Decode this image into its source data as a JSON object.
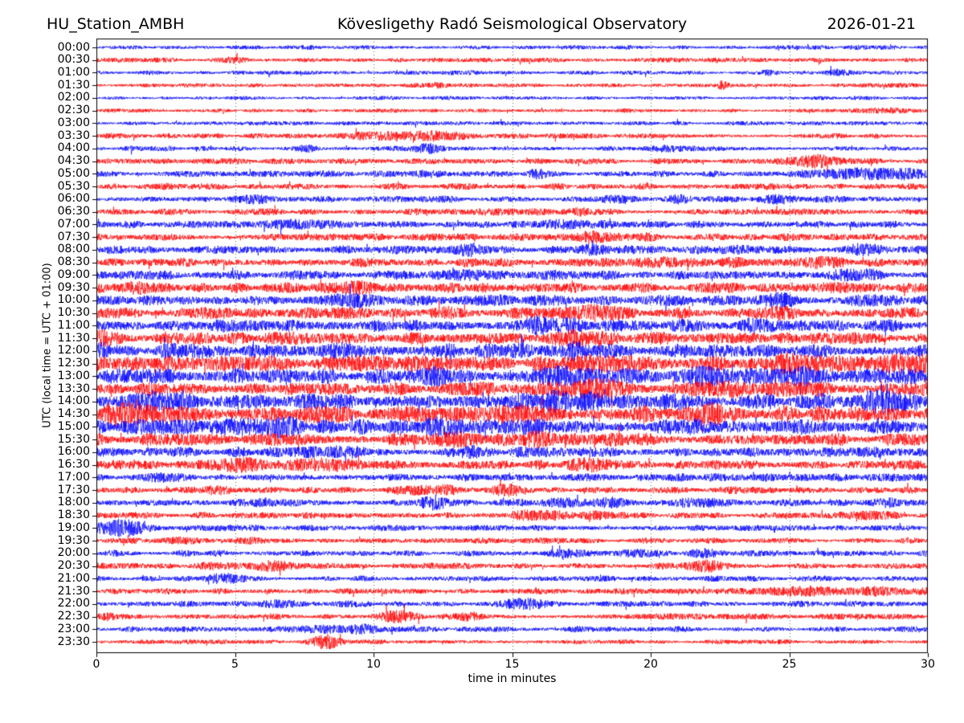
{
  "header": {
    "station": "HU_Station_AMBH",
    "observatory": "Kövesligethy Radó Seismological Observatory",
    "date": "2026-01-21"
  },
  "chart_data": {
    "type": "line",
    "variant": "helicorder-day-plot",
    "title": "Kövesligethy Radó Seismological Observatory",
    "subtitle_left": "HU_Station_AMBH",
    "subtitle_right": "2026-01-21",
    "xlabel": "time in minutes",
    "ylabel": "UTC (local time = UTC + 01:00)",
    "xlim": [
      0,
      30
    ],
    "x_ticks": [
      0,
      5,
      10,
      15,
      20,
      25,
      30
    ],
    "grid": "dotted vertical gridlines at 5-minute intervals",
    "legend": "none",
    "colors": {
      "even_rows": "#0000ff",
      "odd_rows": "#ff0000",
      "grid": "#666666",
      "frame": "#000000"
    },
    "noise_seed": 987654,
    "rows": [
      {
        "label": "00:00",
        "color": "blue",
        "base_amp": 2.2,
        "events": []
      },
      {
        "label": "00:30",
        "color": "red",
        "base_amp": 2.2,
        "events": [
          {
            "t": 5.0,
            "w": 0.3,
            "a": 2
          }
        ]
      },
      {
        "label": "01:00",
        "color": "blue",
        "base_amp": 2.0,
        "events": [
          {
            "t": 13.5,
            "w": 0.3,
            "a": 2
          },
          {
            "t": 24.3,
            "w": 0.2,
            "a": 2
          },
          {
            "t": 26.8,
            "w": 0.4,
            "a": 3
          }
        ]
      },
      {
        "label": "01:30",
        "color": "red",
        "base_amp": 2.0,
        "events": [
          {
            "t": 12.5,
            "w": 0.3,
            "a": 2
          },
          {
            "t": 22.6,
            "w": 0.12,
            "a": 5
          },
          {
            "t": 29.0,
            "w": 0.5,
            "a": 1.5
          }
        ]
      },
      {
        "label": "02:00",
        "color": "blue",
        "base_amp": 1.8,
        "events": []
      },
      {
        "label": "02:30",
        "color": "red",
        "base_amp": 2.0,
        "events": [
          {
            "t": 28.5,
            "w": 0.8,
            "a": 1.5
          }
        ]
      },
      {
        "label": "03:00",
        "color": "blue",
        "base_amp": 2.0,
        "events": []
      },
      {
        "label": "03:30",
        "color": "red",
        "base_amp": 2.5,
        "events": [
          {
            "t": 10.6,
            "w": 1.0,
            "a": 4
          },
          {
            "t": 12.6,
            "w": 0.8,
            "a": 4
          }
        ]
      },
      {
        "label": "04:00",
        "color": "blue",
        "base_amp": 2.5,
        "events": [
          {
            "t": 7.6,
            "w": 0.3,
            "a": 3
          },
          {
            "t": 11.9,
            "w": 0.4,
            "a": 4
          },
          {
            "t": 20.6,
            "w": 0.5,
            "a": 3
          }
        ]
      },
      {
        "label": "04:30",
        "color": "red",
        "base_amp": 2.8,
        "events": [
          {
            "t": 25.9,
            "w": 0.5,
            "a": 7
          }
        ]
      },
      {
        "label": "05:00",
        "color": "blue",
        "base_amp": 3.0,
        "events": [
          {
            "t": 12.0,
            "w": 0.4,
            "a": 3
          },
          {
            "t": 15.9,
            "w": 0.3,
            "a": 3
          },
          {
            "t": 26.5,
            "w": 0.8,
            "a": 4
          },
          {
            "t": 28.8,
            "w": 1.0,
            "a": 5
          }
        ]
      },
      {
        "label": "05:30",
        "color": "red",
        "base_amp": 3.2,
        "events": []
      },
      {
        "label": "06:00",
        "color": "blue",
        "base_amp": 3.2,
        "events": [
          {
            "t": 5.8,
            "w": 0.4,
            "a": 3
          },
          {
            "t": 19.0,
            "w": 0.5,
            "a": 3
          },
          {
            "t": 21.0,
            "w": 0.4,
            "a": 3
          },
          {
            "t": 24.6,
            "w": 0.4,
            "a": 3
          }
        ]
      },
      {
        "label": "06:30",
        "color": "red",
        "base_amp": 3.2,
        "events": [
          {
            "t": 14.5,
            "w": 0.8,
            "a": 3
          },
          {
            "t": 17.4,
            "w": 0.3,
            "a": 3
          }
        ]
      },
      {
        "label": "07:00",
        "color": "blue",
        "base_amp": 3.5,
        "events": [
          {
            "t": 7.3,
            "w": 0.8,
            "a": 4
          },
          {
            "t": 17.0,
            "w": 1.0,
            "a": 3
          }
        ]
      },
      {
        "label": "07:30",
        "color": "red",
        "base_amp": 3.5,
        "events": [
          {
            "t": 18.0,
            "w": 0.8,
            "a": 4
          },
          {
            "t": 19.9,
            "w": 0.3,
            "a": 3
          }
        ]
      },
      {
        "label": "08:00",
        "color": "blue",
        "base_amp": 4.0,
        "events": [
          {
            "t": 13.6,
            "w": 0.4,
            "a": 4
          },
          {
            "t": 17.9,
            "w": 0.4,
            "a": 4
          },
          {
            "t": 23.1,
            "w": 0.4,
            "a": 3
          },
          {
            "t": 27.9,
            "w": 0.5,
            "a": 4
          }
        ]
      },
      {
        "label": "08:30",
        "color": "red",
        "base_amp": 4.5,
        "events": [
          {
            "t": 20.6,
            "w": 0.5,
            "a": 4
          },
          {
            "t": 23.0,
            "w": 0.4,
            "a": 3
          },
          {
            "t": 25.9,
            "w": 0.5,
            "a": 4
          }
        ]
      },
      {
        "label": "09:00",
        "color": "blue",
        "base_amp": 4.5,
        "events": [
          {
            "t": 13.6,
            "w": 0.5,
            "a": 4
          },
          {
            "t": 16.1,
            "w": 0.4,
            "a": 3
          },
          {
            "t": 27.5,
            "w": 0.6,
            "a": 3
          }
        ]
      },
      {
        "label": "09:30",
        "color": "red",
        "base_amp": 5.0,
        "events": [
          {
            "t": 1.4,
            "w": 0.5,
            "a": 5
          },
          {
            "t": 9.5,
            "w": 0.5,
            "a": 3
          }
        ]
      },
      {
        "label": "10:00",
        "color": "blue",
        "base_amp": 5.5,
        "events": [
          {
            "t": 9.3,
            "w": 0.5,
            "a": 4
          },
          {
            "t": 24.4,
            "w": 0.5,
            "a": 5
          }
        ]
      },
      {
        "label": "10:30",
        "color": "red",
        "base_amp": 5.5,
        "events": [
          {
            "t": 12.6,
            "w": 0.5,
            "a": 4
          },
          {
            "t": 18.1,
            "w": 0.6,
            "a": 5
          },
          {
            "t": 24.6,
            "w": 0.5,
            "a": 4
          }
        ]
      },
      {
        "label": "11:00",
        "color": "blue",
        "base_amp": 6.0,
        "events": [
          {
            "t": 15.9,
            "w": 0.6,
            "a": 5
          },
          {
            "t": 16.9,
            "w": 0.4,
            "a": 4
          },
          {
            "t": 24.3,
            "w": 0.5,
            "a": 5
          }
        ]
      },
      {
        "label": "11:30",
        "color": "red",
        "base_amp": 6.5,
        "events": [
          {
            "t": 0.3,
            "w": 0.4,
            "a": 4
          },
          {
            "t": 17.5,
            "w": 0.8,
            "a": 4
          }
        ]
      },
      {
        "label": "12:00",
        "color": "blue",
        "base_amp": 7.0,
        "events": [
          {
            "t": 0.4,
            "w": 0.4,
            "a": 5
          },
          {
            "t": 8.6,
            "w": 0.5,
            "a": 5
          },
          {
            "t": 17.3,
            "w": 0.8,
            "a": 4
          }
        ]
      },
      {
        "label": "12:30",
        "color": "red",
        "base_amp": 7.5,
        "events": [
          {
            "t": 17.6,
            "w": 0.7,
            "a": 5
          },
          {
            "t": 24.9,
            "w": 0.6,
            "a": 5
          },
          {
            "t": 29.0,
            "w": 0.8,
            "a": 4
          }
        ]
      },
      {
        "label": "13:00",
        "color": "blue",
        "base_amp": 7.5,
        "events": [
          {
            "t": 12.5,
            "w": 0.6,
            "a": 4
          },
          {
            "t": 17.4,
            "w": 0.8,
            "a": 5
          },
          {
            "t": 22.1,
            "w": 0.6,
            "a": 5
          },
          {
            "t": 25.6,
            "w": 0.8,
            "a": 4
          }
        ]
      },
      {
        "label": "13:30",
        "color": "red",
        "base_amp": 7.0,
        "events": [
          {
            "t": 17.5,
            "w": 0.9,
            "a": 6
          },
          {
            "t": 22.4,
            "w": 0.8,
            "a": 5
          }
        ]
      },
      {
        "label": "14:00",
        "color": "blue",
        "base_amp": 8.0,
        "events": [
          {
            "t": 2.2,
            "w": 0.8,
            "a": 6
          },
          {
            "t": 16.3,
            "w": 0.9,
            "a": 5
          },
          {
            "t": 28.2,
            "w": 0.8,
            "a": 5
          }
        ]
      },
      {
        "label": "14:30",
        "color": "red",
        "base_amp": 8.0,
        "events": [
          {
            "t": 0.9,
            "w": 0.5,
            "a": 6
          },
          {
            "t": 2.1,
            "w": 0.6,
            "a": 6
          },
          {
            "t": 16.0,
            "w": 0.7,
            "a": 5
          },
          {
            "t": 22.0,
            "w": 0.7,
            "a": 5
          }
        ]
      },
      {
        "label": "15:00",
        "color": "blue",
        "base_amp": 7.0,
        "events": [
          {
            "t": 5.1,
            "w": 0.5,
            "a": 5
          },
          {
            "t": 6.6,
            "w": 0.5,
            "a": 5
          },
          {
            "t": 12.6,
            "w": 0.6,
            "a": 5
          },
          {
            "t": 15.9,
            "w": 0.5,
            "a": 4
          },
          {
            "t": 21.0,
            "w": 0.5,
            "a": 4
          }
        ]
      },
      {
        "label": "15:30",
        "color": "red",
        "base_amp": 6.0,
        "events": [
          {
            "t": 13.0,
            "w": 0.6,
            "a": 4
          },
          {
            "t": 16.1,
            "w": 0.6,
            "a": 6
          },
          {
            "t": 18.9,
            "w": 0.4,
            "a": 4
          }
        ]
      },
      {
        "label": "16:00",
        "color": "blue",
        "base_amp": 5.0,
        "events": [
          {
            "t": 8.8,
            "w": 0.6,
            "a": 5
          },
          {
            "t": 13.6,
            "w": 0.5,
            "a": 4
          },
          {
            "t": 26.5,
            "w": 0.3,
            "a": 3
          }
        ]
      },
      {
        "label": "16:30",
        "color": "red",
        "base_amp": 4.5,
        "events": [
          {
            "t": 5.1,
            "w": 0.6,
            "a": 5
          },
          {
            "t": 8.1,
            "w": 0.7,
            "a": 5
          },
          {
            "t": 17.8,
            "w": 0.5,
            "a": 5
          },
          {
            "t": 29.4,
            "w": 0.3,
            "a": 4
          }
        ]
      },
      {
        "label": "17:00",
        "color": "blue",
        "base_amp": 4.0,
        "events": [
          {
            "t": 2.5,
            "w": 0.5,
            "a": 3
          }
        ]
      },
      {
        "label": "17:30",
        "color": "red",
        "base_amp": 3.5,
        "events": [
          {
            "t": 4.2,
            "w": 0.4,
            "a": 3
          },
          {
            "t": 12.2,
            "w": 0.6,
            "a": 4
          },
          {
            "t": 14.8,
            "w": 0.5,
            "a": 4
          }
        ]
      },
      {
        "label": "18:00",
        "color": "blue",
        "base_amp": 3.5,
        "events": [
          {
            "t": 6.0,
            "w": 0.4,
            "a": 4
          },
          {
            "t": 12.2,
            "w": 0.5,
            "a": 5
          },
          {
            "t": 16.6,
            "w": 0.5,
            "a": 4
          },
          {
            "t": 18.6,
            "w": 0.4,
            "a": 4
          },
          {
            "t": 21.7,
            "w": 0.4,
            "a": 4
          },
          {
            "t": 28.5,
            "w": 0.4,
            "a": 3
          }
        ]
      },
      {
        "label": "18:30",
        "color": "red",
        "base_amp": 3.2,
        "events": [
          {
            "t": 16.0,
            "w": 0.8,
            "a": 4
          },
          {
            "t": 18.3,
            "w": 0.5,
            "a": 3
          },
          {
            "t": 27.9,
            "w": 0.5,
            "a": 3
          }
        ]
      },
      {
        "label": "19:00",
        "color": "blue",
        "base_amp": 3.0,
        "events": [
          {
            "t": 1.0,
            "w": 0.7,
            "a": 8
          }
        ]
      },
      {
        "label": "19:30",
        "color": "red",
        "base_amp": 2.8,
        "events": [
          {
            "t": 3.0,
            "w": 0.4,
            "a": 3
          },
          {
            "t": 5.6,
            "w": 0.3,
            "a": 2
          }
        ]
      },
      {
        "label": "20:00",
        "color": "blue",
        "base_amp": 3.0,
        "events": [
          {
            "t": 17.0,
            "w": 0.5,
            "a": 4
          },
          {
            "t": 19.6,
            "w": 0.4,
            "a": 4
          },
          {
            "t": 22.0,
            "w": 0.4,
            "a": 3
          }
        ]
      },
      {
        "label": "20:30",
        "color": "red",
        "base_amp": 3.0,
        "events": [
          {
            "t": 4.4,
            "w": 0.4,
            "a": 3
          },
          {
            "t": 6.3,
            "w": 0.4,
            "a": 6
          },
          {
            "t": 21.9,
            "w": 0.5,
            "a": 6
          }
        ]
      },
      {
        "label": "21:00",
        "color": "blue",
        "base_amp": 2.8,
        "events": [
          {
            "t": 4.5,
            "w": 0.5,
            "a": 5
          }
        ]
      },
      {
        "label": "21:30",
        "color": "red",
        "base_amp": 2.8,
        "events": [
          {
            "t": 25.5,
            "w": 1.5,
            "a": 3
          },
          {
            "t": 28.5,
            "w": 1.0,
            "a": 3
          }
        ]
      },
      {
        "label": "22:00",
        "color": "blue",
        "base_amp": 3.0,
        "events": [
          {
            "t": 6.5,
            "w": 0.4,
            "a": 3
          },
          {
            "t": 15.3,
            "w": 0.5,
            "a": 6
          }
        ]
      },
      {
        "label": "22:30",
        "color": "red",
        "base_amp": 3.0,
        "events": [
          {
            "t": 0.3,
            "w": 0.2,
            "a": 3
          },
          {
            "t": 10.8,
            "w": 0.4,
            "a": 6
          },
          {
            "t": 13.5,
            "w": 0.3,
            "a": 4
          }
        ]
      },
      {
        "label": "23:00",
        "color": "blue",
        "base_amp": 2.8,
        "events": [
          {
            "t": 8.5,
            "w": 0.8,
            "a": 3
          },
          {
            "t": 9.8,
            "w": 0.5,
            "a": 3
          }
        ]
      },
      {
        "label": "23:30",
        "color": "red",
        "base_amp": 2.2,
        "events": [
          {
            "t": 8.3,
            "w": 0.4,
            "a": 7
          }
        ]
      }
    ]
  }
}
